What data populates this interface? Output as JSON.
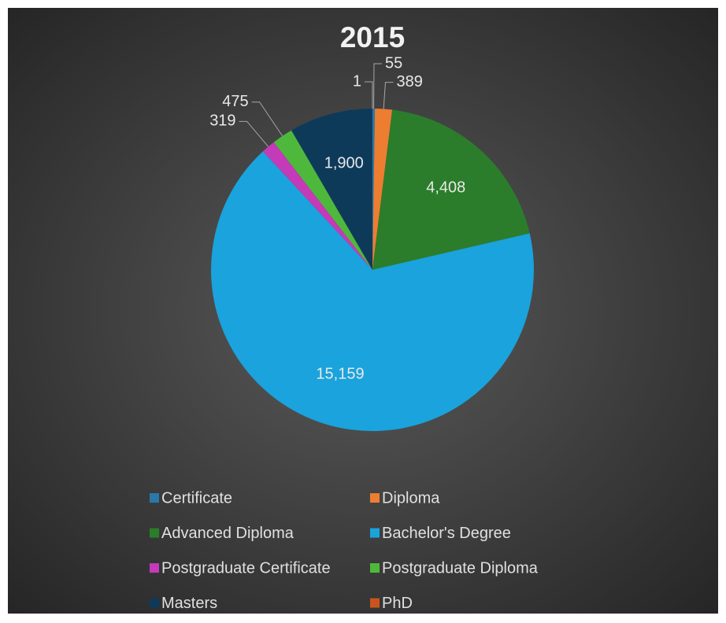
{
  "chart_data": {
    "type": "pie",
    "title": "2015",
    "categories": [
      "Certificate",
      "Diploma",
      "Advanced Diploma",
      "Bachelor's Degree",
      "Postgraduate Certificate",
      "Postgraduate Diploma",
      "Masters",
      "PhD"
    ],
    "values": [
      55,
      389,
      4408,
      15159,
      319,
      475,
      1900,
      1
    ],
    "value_labels": [
      "55",
      "389",
      "4,408",
      "15,159",
      "319",
      "475",
      "1,900",
      "1"
    ],
    "colors": [
      "#2a78a8",
      "#ed7d31",
      "#2b7d2b",
      "#1aa3dc",
      "#c43ab8",
      "#4eb83c",
      "#0e3a5a",
      "#c8561c"
    ]
  }
}
